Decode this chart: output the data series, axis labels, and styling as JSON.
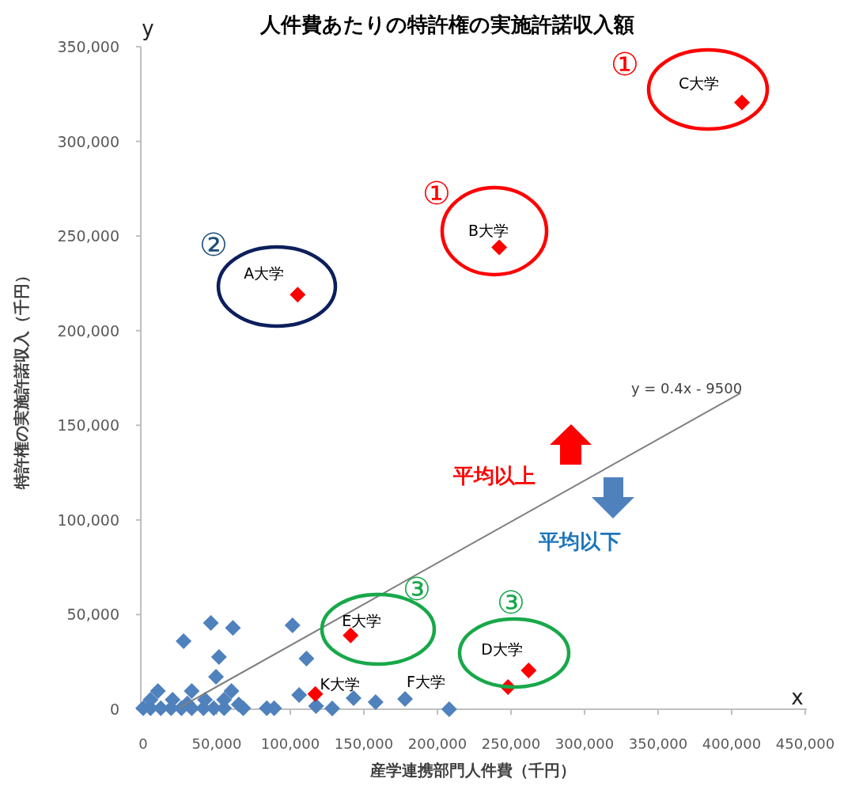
{
  "chart_data": {
    "type": "scatter",
    "title": "人件費あたりの特許権の実施許諾収入額",
    "xlabel": "産学連携部門人件費（千円）",
    "ylabel": "特許権の実施許諾収入（千円）",
    "xlim": [
      0,
      450000
    ],
    "ylim": [
      0,
      350000
    ],
    "xticks": [
      0,
      {
        "value": 50000,
        "label": "50,000"
      },
      {
        "value": 100000,
        "label": "100,000"
      },
      {
        "value": 150000,
        "label": "150,000"
      },
      {
        "value": 200000,
        "label": "200,000"
      },
      {
        "value": 250000,
        "label": "250,000"
      },
      {
        "value": 300000,
        "label": "300,000"
      },
      {
        "value": 350000,
        "label": "350,000"
      },
      {
        "value": 400000,
        "label": "400,000"
      },
      {
        "value": 450000,
        "label": "450,000"
      }
    ],
    "yticks": [
      0,
      {
        "value": 50000,
        "label": "50,000"
      },
      {
        "value": 100000,
        "label": "100,000"
      },
      {
        "value": 150000,
        "label": "150,000"
      },
      {
        "value": 200000,
        "label": "200,000"
      },
      {
        "value": 250000,
        "label": "250,000"
      },
      {
        "value": 300000,
        "label": "300,000"
      },
      {
        "value": 350000,
        "label": "350,000"
      }
    ],
    "marker": "diamond",
    "grid": false,
    "series": [
      {
        "type": "scatter",
        "color": "#4f81bd",
        "x": [
          0,
          5000,
          12000,
          19000,
          26000,
          33000,
          41000,
          48000,
          55000,
          68000,
          84000,
          89000,
          10000,
          33000,
          60000,
          5000,
          20000,
          42000,
          55000,
          30000,
          65000,
          46000,
          61000,
          101500,
          27500,
          51500,
          111000,
          49500,
          106000,
          117500,
          128500,
          143000,
          158000,
          178000,
          208000
        ],
        "values": [
          500,
          500,
          500,
          500,
          500,
          500,
          500,
          500,
          500,
          500,
          500,
          500,
          9600,
          9600,
          9600,
          5000,
          5000,
          5000,
          5000,
          3000,
          2500,
          45600,
          43000,
          44300,
          36000,
          27600,
          26800,
          17100,
          7500,
          1700,
          400,
          5900,
          3800,
          5400,
          0
        ]
      },
      {
        "type": "scatter",
        "color": "#ff0000",
        "x": [
          105000,
          242000,
          407000,
          141000,
          117000,
          248000,
          262000
        ],
        "values": [
          219000,
          244000,
          320500,
          39000,
          8000,
          11700,
          20500
        ]
      },
      {
        "type": "line",
        "marker": "none",
        "color": "#7f7f7f",
        "x": [
          25000,
          406000
        ],
        "values": [
          1000,
          167000
        ]
      }
    ],
    "annotations": [
      "y",
      "x",
      "y = 0.4x - 9500",
      "平均以上",
      "平均以下",
      "①",
      "①",
      "②",
      "③",
      "③",
      {
        "text": "A大学",
        "x": 105000,
        "y": 219000
      },
      {
        "text": "B大学",
        "x": 242000,
        "y": 244000
      },
      {
        "text": "C大学",
        "x": 407000,
        "y": 320500
      },
      {
        "text": "D大学",
        "x": 262000,
        "y": 20500
      },
      {
        "text": "E大学",
        "x": 141000,
        "y": 39000
      },
      {
        "text": "K大学",
        "x": 117000,
        "y": 8000
      },
      {
        "text": "F大学",
        "x": 178000,
        "y": 5400
      }
    ]
  }
}
